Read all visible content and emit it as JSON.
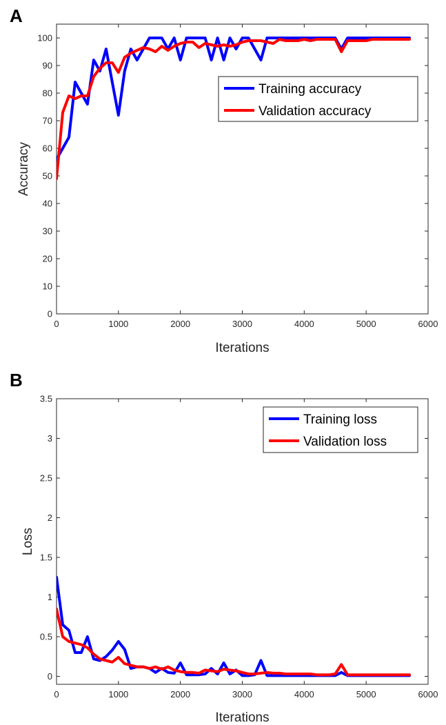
{
  "colors": {
    "training": "#0000ff",
    "validation": "#ff0000",
    "axis": "#262626"
  },
  "chart_data": [
    {
      "panel_label": "A",
      "type": "line",
      "title": "",
      "xlabel": "Iterations",
      "ylabel": "Accuracy",
      "xlim": [
        0,
        6000
      ],
      "ylim": [
        0,
        105
      ],
      "xticks": [
        0,
        1000,
        2000,
        3000,
        4000,
        5000,
        6000
      ],
      "yticks": [
        0,
        10,
        20,
        30,
        40,
        50,
        60,
        70,
        80,
        90,
        100
      ],
      "grid": false,
      "legend_position": "top-right",
      "series": [
        {
          "name": "Training accuracy",
          "color": "#0000ff",
          "x": [
            0,
            100,
            200,
            300,
            400,
            500,
            600,
            700,
            800,
            900,
            1000,
            1100,
            1200,
            1300,
            1400,
            1500,
            1600,
            1700,
            1800,
            1900,
            2000,
            2100,
            2200,
            2300,
            2400,
            2500,
            2600,
            2700,
            2800,
            2900,
            3000,
            3100,
            3200,
            3300,
            3400,
            3500,
            3600,
            3700,
            3800,
            3900,
            4000,
            4100,
            4200,
            4300,
            4400,
            4500,
            4600,
            4700,
            4800,
            4900,
            5000,
            5100,
            5200,
            5300,
            5400,
            5500,
            5600,
            5700
          ],
          "y": [
            56,
            60,
            64,
            84,
            80,
            76,
            92,
            88,
            96,
            84,
            72,
            88,
            96,
            92,
            96,
            100,
            100,
            100,
            96,
            100,
            92,
            100,
            100,
            100,
            100,
            92,
            100,
            92,
            100,
            96,
            100,
            100,
            96,
            92,
            100,
            100,
            100,
            100,
            100,
            100,
            100,
            100,
            100,
            100,
            100,
            100,
            96,
            100,
            100,
            100,
            100,
            100,
            100,
            100,
            100,
            100,
            100,
            100
          ]
        },
        {
          "name": "Validation accuracy",
          "color": "#ff0000",
          "x": [
            0,
            100,
            200,
            300,
            400,
            500,
            600,
            700,
            800,
            900,
            1000,
            1100,
            1200,
            1300,
            1400,
            1500,
            1600,
            1700,
            1800,
            1900,
            2000,
            2100,
            2200,
            2300,
            2400,
            2500,
            2600,
            2700,
            2800,
            2900,
            3000,
            3100,
            3200,
            3300,
            3400,
            3500,
            3600,
            3700,
            3800,
            3900,
            4000,
            4100,
            4200,
            4300,
            4400,
            4500,
            4600,
            4700,
            4800,
            4900,
            5000,
            5100,
            5200,
            5300,
            5400,
            5500,
            5600,
            5700
          ],
          "y": [
            49,
            73,
            79,
            78,
            79,
            79,
            86,
            89,
            91,
            91,
            87.5,
            93,
            94.5,
            95.5,
            96.5,
            96,
            95,
            97,
            95.5,
            97,
            98,
            98.5,
            98.5,
            96.5,
            98,
            97.5,
            97,
            97.5,
            97,
            97.5,
            98.5,
            99,
            99,
            99,
            98.5,
            98,
            99.5,
            99,
            99,
            99,
            99.5,
            99,
            99.5,
            99.5,
            99.5,
            99.5,
            95,
            99,
            99,
            99,
            99,
            99.5,
            99.5,
            99.5,
            99.5,
            99.5,
            99.5,
            99.5
          ]
        }
      ]
    },
    {
      "panel_label": "B",
      "type": "line",
      "title": "",
      "xlabel": "Iterations",
      "ylabel": "Loss",
      "xlim": [
        0,
        6000
      ],
      "ylim": [
        -0.1,
        3.5
      ],
      "xticks": [
        0,
        1000,
        2000,
        3000,
        4000,
        5000,
        6000
      ],
      "yticks": [
        0,
        0.5,
        1,
        1.5,
        2,
        2.5,
        3,
        3.5
      ],
      "grid": false,
      "legend_position": "top-right",
      "series": [
        {
          "name": "Training loss",
          "color": "#0000ff",
          "x": [
            0,
            100,
            200,
            300,
            400,
            500,
            600,
            700,
            800,
            900,
            1000,
            1100,
            1200,
            1300,
            1400,
            1500,
            1600,
            1700,
            1800,
            1900,
            2000,
            2100,
            2200,
            2300,
            2400,
            2500,
            2600,
            2700,
            2800,
            2900,
            3000,
            3100,
            3200,
            3300,
            3400,
            3500,
            3600,
            3700,
            3800,
            3900,
            4000,
            4100,
            4200,
            4300,
            4400,
            4500,
            4600,
            4700,
            4800,
            4900,
            5000,
            5100,
            5200,
            5300,
            5400,
            5500,
            5600,
            5700
          ],
          "y": [
            1.25,
            0.65,
            0.58,
            0.3,
            0.3,
            0.5,
            0.22,
            0.2,
            0.25,
            0.33,
            0.44,
            0.34,
            0.1,
            0.12,
            0.12,
            0.1,
            0.05,
            0.1,
            0.05,
            0.04,
            0.17,
            0.02,
            0.02,
            0.02,
            0.03,
            0.1,
            0.03,
            0.17,
            0.03,
            0.08,
            0.01,
            0.01,
            0.02,
            0.2,
            0.01,
            0.01,
            0.01,
            0.01,
            0.01,
            0.01,
            0.01,
            0.01,
            0.01,
            0.01,
            0.01,
            0.01,
            0.05,
            0.01,
            0.01,
            0.01,
            0.01,
            0.01,
            0.01,
            0.01,
            0.01,
            0.01,
            0.01,
            0.01
          ]
        },
        {
          "name": "Validation loss",
          "color": "#ff0000",
          "x": [
            0,
            100,
            200,
            300,
            400,
            500,
            600,
            700,
            800,
            900,
            1000,
            1100,
            1200,
            1300,
            1400,
            1500,
            1600,
            1700,
            1800,
            1900,
            2000,
            2100,
            2200,
            2300,
            2400,
            2500,
            2600,
            2700,
            2800,
            2900,
            3000,
            3100,
            3200,
            3300,
            3400,
            3500,
            3600,
            3700,
            3800,
            3900,
            4000,
            4100,
            4200,
            4300,
            4400,
            4500,
            4600,
            4700,
            4800,
            4900,
            5000,
            5100,
            5200,
            5300,
            5400,
            5500,
            5600,
            5700
          ],
          "y": [
            0.85,
            0.5,
            0.44,
            0.42,
            0.4,
            0.36,
            0.28,
            0.22,
            0.2,
            0.18,
            0.24,
            0.16,
            0.14,
            0.12,
            0.12,
            0.1,
            0.12,
            0.09,
            0.12,
            0.08,
            0.06,
            0.05,
            0.05,
            0.04,
            0.08,
            0.07,
            0.06,
            0.09,
            0.08,
            0.07,
            0.05,
            0.03,
            0.03,
            0.04,
            0.05,
            0.04,
            0.04,
            0.03,
            0.03,
            0.03,
            0.03,
            0.03,
            0.02,
            0.02,
            0.02,
            0.03,
            0.15,
            0.02,
            0.02,
            0.02,
            0.02,
            0.02,
            0.02,
            0.02,
            0.02,
            0.02,
            0.02,
            0.02
          ]
        }
      ]
    }
  ]
}
